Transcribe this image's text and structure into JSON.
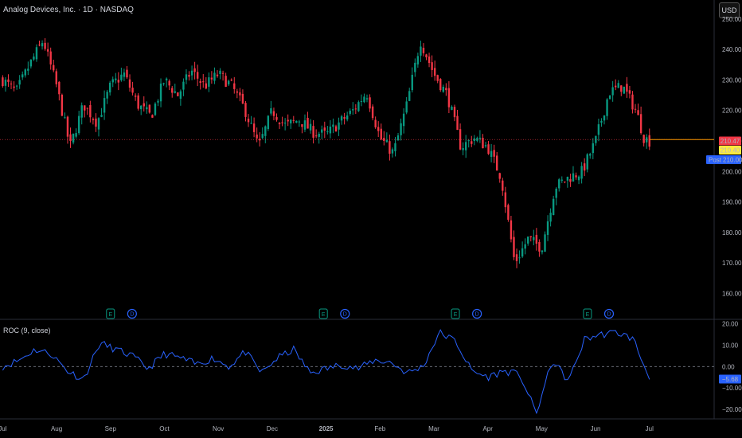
{
  "header": {
    "title": "Analog Devices, Inc. · 1D · NASDAQ",
    "currency_button": "USD"
  },
  "indicator": {
    "title": "ROC (9, close)"
  },
  "colors": {
    "up": "#089981",
    "down": "#f23645",
    "roc_line": "#2962ff",
    "price_line": "#ff9800",
    "background": "#000000"
  },
  "price_labels": {
    "last": {
      "value": "210.47",
      "color": "#f23645"
    },
    "bid": {
      "value": "210.40",
      "color": "#ffeb3b"
    },
    "post": {
      "label": "Post",
      "value": "210.00",
      "color": "#2962ff"
    }
  },
  "roc_label": {
    "value": "−5.68",
    "color": "#2962ff"
  },
  "events": [
    {
      "type": "earnings",
      "label": "E",
      "month_index": 2.0
    },
    {
      "type": "dividend",
      "label": "D",
      "month_index": 2.4
    },
    {
      "type": "earnings",
      "label": "E",
      "month_index": 5.95
    },
    {
      "type": "dividend",
      "label": "D",
      "month_index": 6.35
    },
    {
      "type": "earnings",
      "label": "E",
      "month_index": 8.4
    },
    {
      "type": "dividend",
      "label": "D",
      "month_index": 8.8
    },
    {
      "type": "earnings",
      "label": "E",
      "month_index": 10.85
    },
    {
      "type": "dividend",
      "label": "D",
      "month_index": 11.25
    }
  ],
  "chart_data": [
    {
      "type": "candlestick",
      "x_ticks": [
        "Jul",
        "Aug",
        "Sep",
        "Oct",
        "Nov",
        "Dec",
        "2025",
        "Feb",
        "Mar",
        "Apr",
        "May",
        "Jun",
        "Jul"
      ],
      "y_ticks": [
        "250.00",
        "240.00",
        "230.00",
        "220.00",
        "210.00",
        "200.00",
        "190.00",
        "180.00",
        "170.00",
        "160.00"
      ],
      "ylim": [
        157,
        251
      ],
      "x_range_months": [
        -0.05,
        13.2
      ],
      "series": [
        {
          "name": "close",
          "x": [
            0,
            0.25,
            0.5,
            0.75,
            1,
            1.25,
            1.5,
            1.75,
            2,
            2.25,
            2.5,
            2.75,
            3,
            3.25,
            3.5,
            3.75,
            4,
            4.25,
            4.5,
            4.75,
            5,
            5.25,
            5.5,
            5.75,
            6,
            6.25,
            6.5,
            6.75,
            7,
            7.25,
            7.5,
            7.75,
            8,
            8.25,
            8.5,
            8.75,
            9,
            9.25,
            9.5,
            9.75,
            10,
            10.25,
            10.5,
            10.75,
            11,
            11.25,
            11.5,
            11.75,
            11.9,
            12.0
          ],
          "y": [
            230,
            226,
            235,
            243,
            228,
            208,
            222,
            216,
            228,
            232,
            222,
            218,
            230,
            225,
            233,
            228,
            232,
            228,
            220,
            208,
            220,
            215,
            217,
            213,
            212,
            216,
            220,
            226,
            211,
            206,
            222,
            243,
            232,
            225,
            208,
            211,
            208,
            198,
            170,
            178,
            175,
            195,
            198,
            200,
            210,
            226,
            228,
            220,
            211,
            210
          ]
        }
      ]
    },
    {
      "type": "line",
      "y_ticks": [
        "20.00",
        "10.00",
        "0.00",
        "−10.00",
        "−20.00"
      ],
      "ylim": [
        -23,
        21
      ],
      "series": [
        {
          "name": "ROC",
          "x": [
            0,
            0.3,
            0.6,
            0.9,
            1.2,
            1.5,
            1.8,
            2.1,
            2.4,
            2.7,
            3.0,
            3.3,
            3.6,
            3.9,
            4.2,
            4.5,
            4.8,
            5.1,
            5.4,
            5.7,
            6.0,
            6.3,
            6.6,
            6.9,
            7.2,
            7.5,
            7.8,
            8.1,
            8.4,
            8.7,
            9.0,
            9.3,
            9.6,
            9.9,
            10.2,
            10.5,
            10.8,
            11.1,
            11.4,
            11.7,
            12.0
          ],
          "y": [
            0,
            3,
            8,
            6,
            -2,
            -6,
            11,
            8,
            5,
            -1,
            6,
            4,
            1,
            4,
            0,
            7,
            -3,
            4,
            8,
            -3,
            -1,
            1,
            -1,
            3,
            2,
            -3,
            0,
            16,
            12,
            -2,
            -5,
            -2,
            -4,
            -22,
            3,
            -7,
            13,
            15,
            16,
            13,
            -6
          ]
        }
      ]
    }
  ]
}
